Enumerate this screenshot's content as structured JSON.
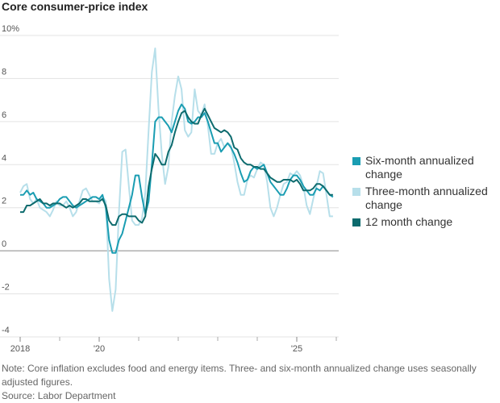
{
  "chart_data": {
    "type": "line",
    "title": "Core consumer-price index",
    "x": [
      2018,
      2018.083,
      2018.167,
      2018.25,
      2018.333,
      2018.417,
      2018.5,
      2018.583,
      2018.667,
      2018.75,
      2018.833,
      2018.917,
      2019,
      2019.083,
      2019.167,
      2019.25,
      2019.333,
      2019.417,
      2019.5,
      2019.583,
      2019.667,
      2019.75,
      2019.833,
      2019.917,
      2020,
      2020.083,
      2020.167,
      2020.25,
      2020.333,
      2020.417,
      2020.5,
      2020.583,
      2020.667,
      2020.75,
      2020.833,
      2020.917,
      2021,
      2021.083,
      2021.167,
      2021.25,
      2021.333,
      2021.417,
      2021.5,
      2021.583,
      2021.667,
      2021.75,
      2021.833,
      2021.917,
      2022,
      2022.083,
      2022.167,
      2022.25,
      2022.333,
      2022.417,
      2022.5,
      2022.583,
      2022.667,
      2022.75,
      2022.833,
      2022.917,
      2023,
      2023.083,
      2023.167,
      2023.25,
      2023.333,
      2023.417,
      2023.5,
      2023.583,
      2023.667,
      2023.75,
      2023.833,
      2023.917,
      2024,
      2024.083,
      2024.167,
      2024.25,
      2024.333,
      2024.417,
      2024.5,
      2024.583,
      2024.667,
      2024.75,
      2024.833,
      2024.917,
      2025,
      2025.083,
      2025.167,
      2025.25,
      2025.333,
      2025.417,
      2025.5,
      2025.583,
      2025.667,
      2025.75,
      2025.833,
      2025.917
    ],
    "series": [
      {
        "name": "Six-month annualized change",
        "color": "#1a9db2",
        "values": [
          2.6,
          2.6,
          2.8,
          2.6,
          2.7,
          2.4,
          2.3,
          2.2,
          2.0,
          2.0,
          2.1,
          2.2,
          2.4,
          2.5,
          2.5,
          2.3,
          2.1,
          2.0,
          2.1,
          2.2,
          2.3,
          2.4,
          2.5,
          2.5,
          2.4,
          2.6,
          2.0,
          0.5,
          -0.1,
          -0.1,
          0.5,
          0.8,
          1.4,
          2.0,
          2.6,
          3.5,
          3.5,
          2.5,
          1.7,
          2.3,
          4.0,
          6.0,
          6.2,
          6.2,
          6.0,
          5.8,
          5.5,
          6.0,
          6.5,
          6.8,
          6.6,
          6.0,
          5.9,
          6.0,
          6.2,
          6.2,
          6.4,
          6.0,
          5.5,
          5.0,
          5.0,
          4.6,
          4.8,
          5.0,
          4.8,
          4.5,
          4.1,
          3.6,
          3.2,
          3.3,
          3.7,
          3.9,
          3.8,
          3.9,
          4.0,
          3.6,
          3.2,
          3.0,
          2.8,
          2.6,
          2.6,
          2.9,
          3.3,
          3.5,
          3.5,
          3.3,
          3.0,
          2.8,
          2.6,
          2.6,
          2.9,
          2.8,
          3.0,
          2.8,
          2.6,
          2.5
        ]
      },
      {
        "name": "Three-month annualized change",
        "color": "#b7dfea",
        "values": [
          2.7,
          3.0,
          3.1,
          2.4,
          2.2,
          2.4,
          2.0,
          1.9,
          1.8,
          1.6,
          1.9,
          2.3,
          2.1,
          2.1,
          2.3,
          2.0,
          1.6,
          1.8,
          2.3,
          2.8,
          2.9,
          2.6,
          2.3,
          2.3,
          2.2,
          2.5,
          2.3,
          -1.3,
          -2.8,
          -1.8,
          1.8,
          4.6,
          4.7,
          3.0,
          1.4,
          1.2,
          1.2,
          1.5,
          2.7,
          5.6,
          8.3,
          9.4,
          6.6,
          4.5,
          3.1,
          3.9,
          6.0,
          7.2,
          8.1,
          7.5,
          5.6,
          5.3,
          5.5,
          7.5,
          6.5,
          6.3,
          6.8,
          5.8,
          4.5,
          4.5,
          5.0,
          5.2,
          4.8,
          5.0,
          4.9,
          4.1,
          3.2,
          2.6,
          2.6,
          3.3,
          3.5,
          3.4,
          3.8,
          4.1,
          4.0,
          3.2,
          2.0,
          1.6,
          2.0,
          2.6,
          3.1,
          3.2,
          3.6,
          3.5,
          3.7,
          3.5,
          3.0,
          2.1,
          1.7,
          2.4,
          3.0,
          3.7,
          3.6,
          2.6,
          1.6,
          1.6
        ]
      },
      {
        "name": "12 month change",
        "color": "#0d6b6e",
        "values": [
          1.8,
          1.8,
          2.1,
          2.1,
          2.2,
          2.3,
          2.4,
          2.2,
          2.2,
          2.1,
          2.2,
          2.2,
          2.2,
          2.1,
          2.0,
          2.1,
          2.0,
          2.1,
          2.2,
          2.4,
          2.4,
          2.3,
          2.3,
          2.3,
          2.3,
          2.4,
          2.1,
          1.4,
          1.2,
          1.2,
          1.6,
          1.7,
          1.7,
          1.6,
          1.6,
          1.6,
          1.4,
          1.3,
          1.6,
          3.0,
          3.8,
          4.5,
          4.3,
          4.0,
          4.0,
          4.6,
          4.9,
          5.5,
          6.0,
          6.4,
          6.5,
          6.2,
          6.0,
          5.9,
          5.9,
          6.3,
          6.6,
          6.3,
          6.0,
          5.7,
          5.6,
          5.5,
          5.6,
          5.5,
          5.3,
          4.8,
          4.7,
          4.3,
          4.1,
          4.0,
          4.0,
          3.9,
          3.9,
          3.8,
          3.8,
          3.6,
          3.4,
          3.3,
          3.2,
          3.2,
          3.3,
          3.3,
          3.3,
          3.2,
          3.3,
          3.1,
          2.8,
          2.8,
          2.8,
          2.9,
          3.1,
          3.1,
          3.0,
          2.8,
          2.6,
          2.6
        ]
      }
    ],
    "xlim": [
      2018,
      2026
    ],
    "xticks": [
      {
        "value": 2018,
        "label": "2018"
      },
      {
        "value": 2020,
        "label": "'20"
      },
      {
        "value": 2025,
        "label": "'25"
      }
    ],
    "xminorticks": [
      2019,
      2021,
      2022,
      2023,
      2024,
      2026
    ],
    "ylim": [
      -4,
      10
    ],
    "yticks": [
      -4,
      -2,
      0,
      2,
      4,
      6,
      8,
      {
        "value": 10,
        "label": "10%"
      }
    ],
    "grid": true,
    "note": "Note: Core inflation excludes food and energy items. Three- and six-month annualized change uses seasonally adjusted figures.",
    "source": "Source: Labor Department"
  }
}
